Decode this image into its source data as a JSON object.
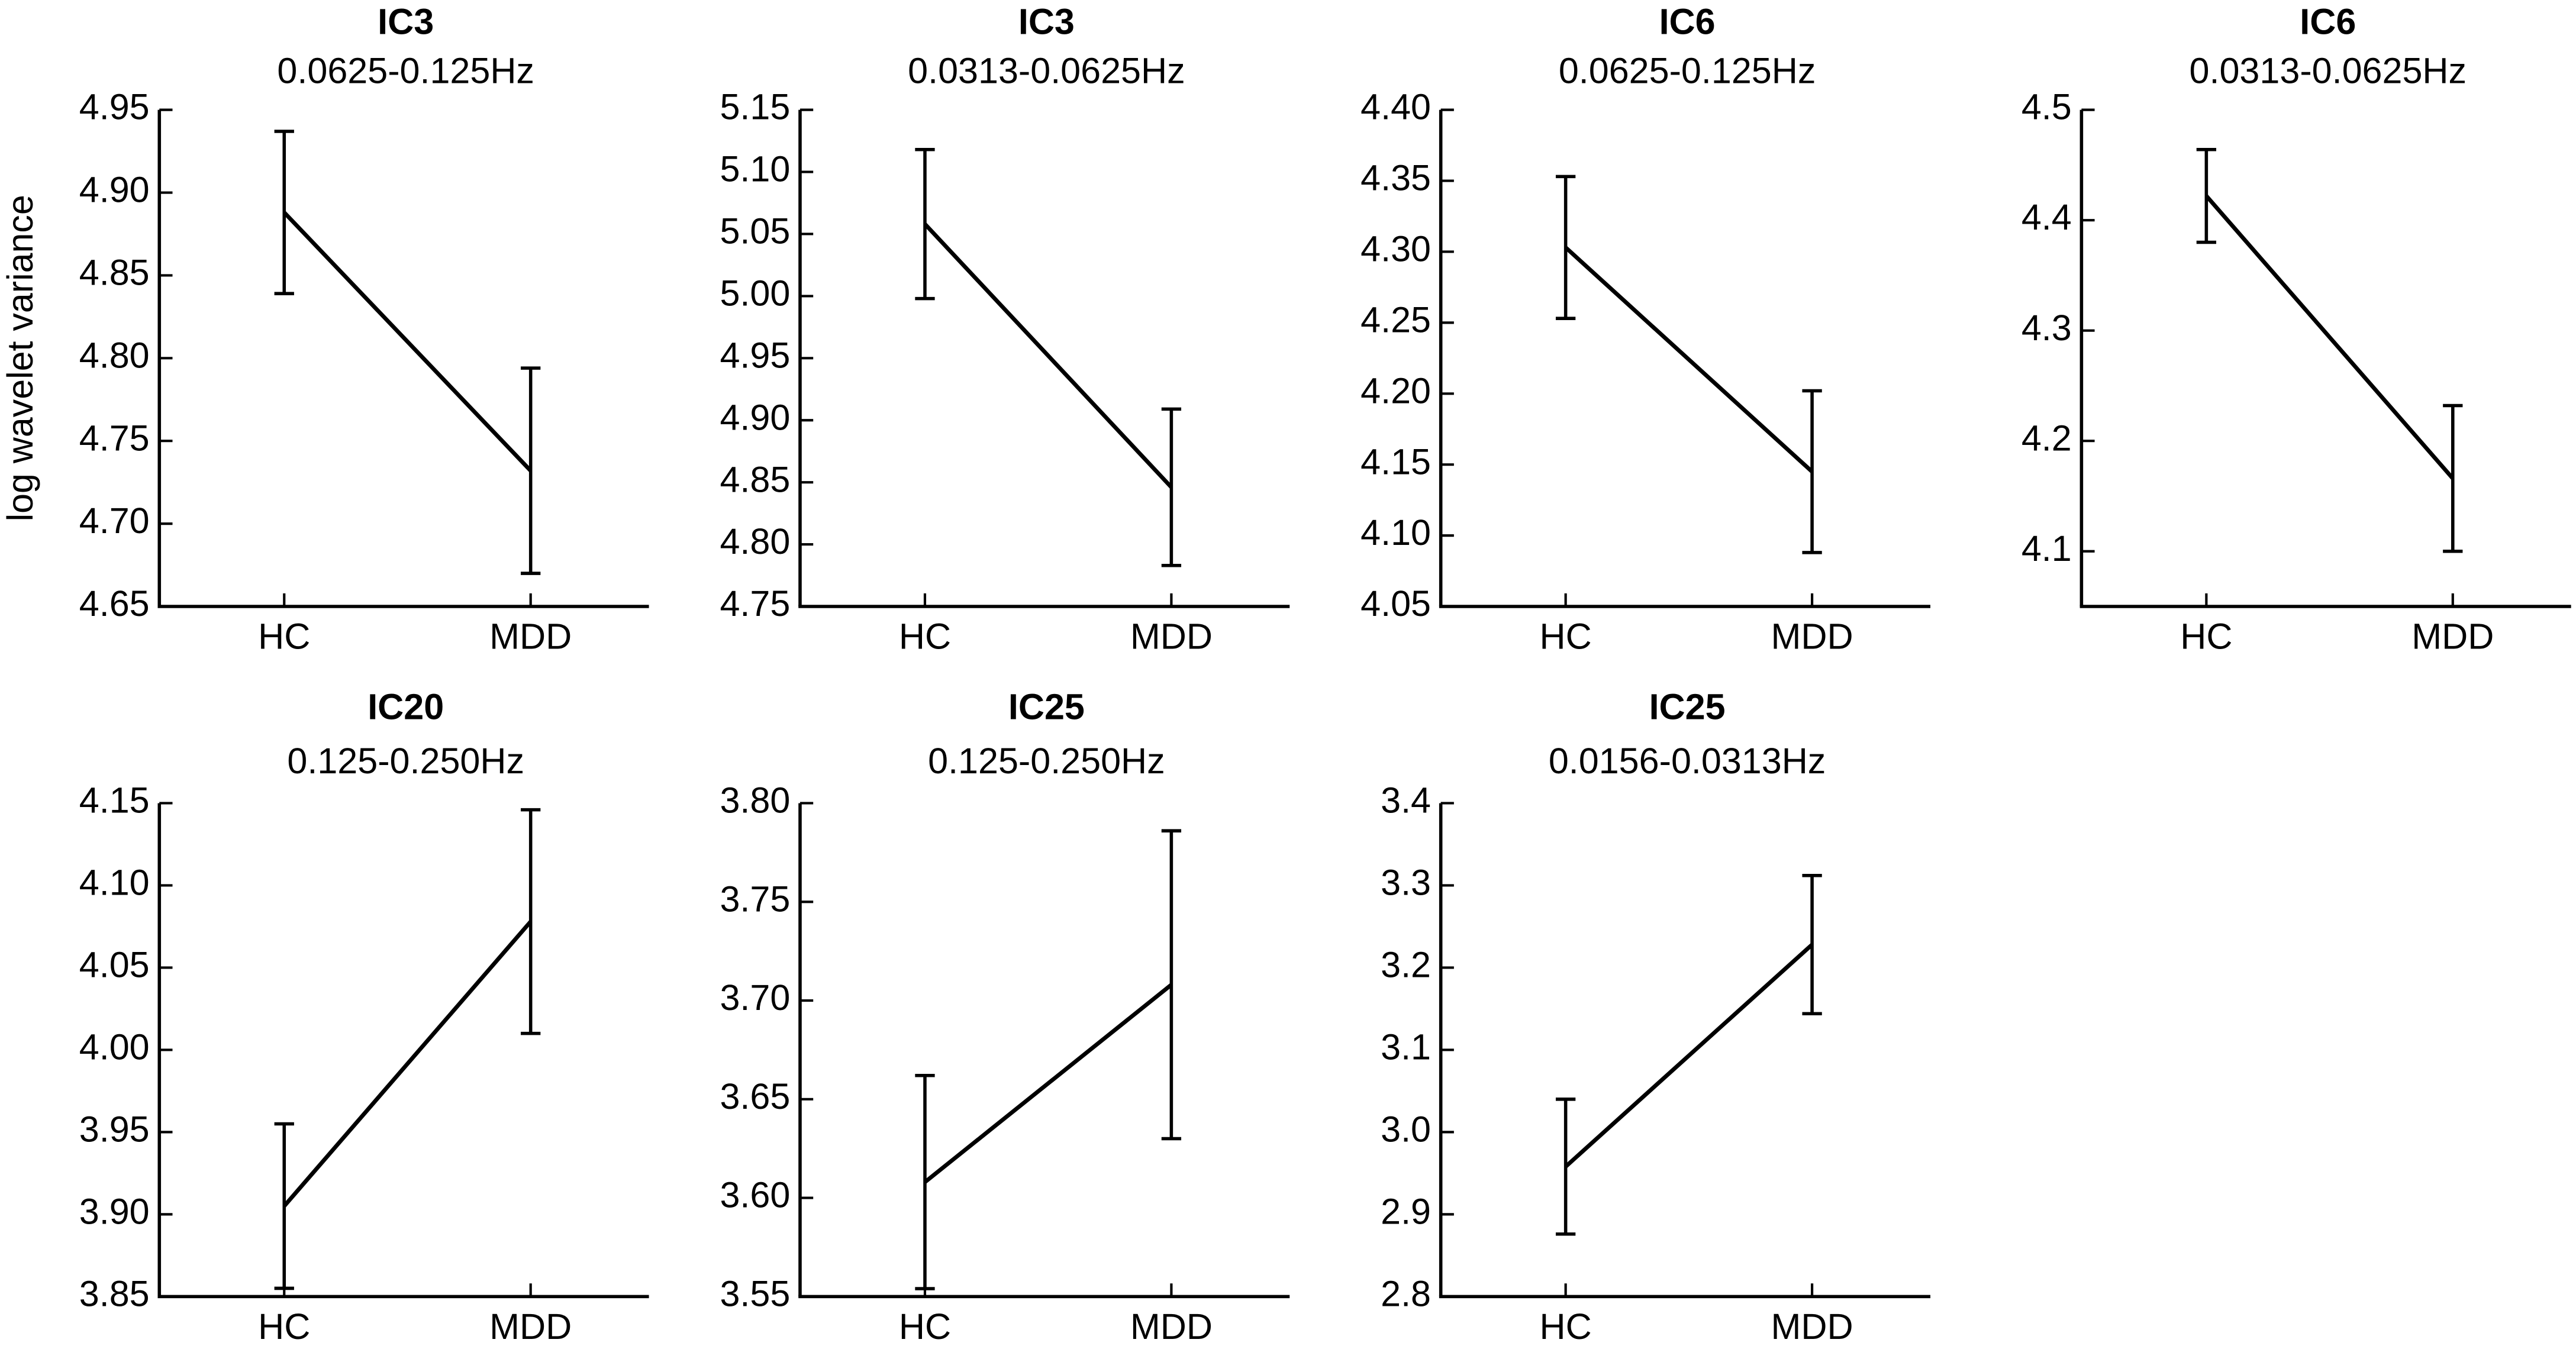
{
  "chart_data": [
    {
      "type": "line",
      "title": "IC3",
      "subtitle": "0.0625-0.125Hz",
      "y_label": "log wavelet variance",
      "categories": [
        "HC",
        "MDD"
      ],
      "values": [
        4.888,
        4.732
      ],
      "errors": [
        0.049,
        0.062
      ],
      "color": "#000000",
      "ylim": [
        4.65,
        4.95
      ],
      "yticks": [
        4.65,
        {
          "value": 4.7,
          "label": "4.70"
        },
        4.75,
        {
          "value": 4.8,
          "label": "4.80"
        },
        4.85,
        {
          "value": 4.9,
          "label": "4.90"
        },
        4.95
      ]
    },
    {
      "type": "line",
      "title": "IC3",
      "subtitle": "0.0313-0.0625Hz",
      "categories": [
        "HC",
        "MDD"
      ],
      "values": [
        5.058,
        4.846
      ],
      "errors": [
        0.06,
        0.063
      ],
      "color": "#000000",
      "ylim": [
        4.75,
        5.15
      ],
      "yticks": [
        4.75,
        {
          "value": 4.8,
          "label": "4.80"
        },
        4.85,
        {
          "value": 4.9,
          "label": "4.90"
        },
        4.95,
        {
          "value": 5.0,
          "label": "5.00"
        },
        5.05,
        {
          "value": 5.1,
          "label": "5.10"
        },
        5.15
      ]
    },
    {
      "type": "line",
      "title": "IC6",
      "subtitle": "0.0625-0.125Hz",
      "categories": [
        "HC",
        "MDD"
      ],
      "values": [
        4.303,
        4.145
      ],
      "errors": [
        0.05,
        0.057
      ],
      "color": "#000000",
      "ylim": [
        4.05,
        4.4
      ],
      "yticks": [
        4.05,
        {
          "value": 4.1,
          "label": "4.10"
        },
        4.15,
        {
          "value": 4.2,
          "label": "4.20"
        },
        4.25,
        {
          "value": 4.3,
          "label": "4.30"
        },
        4.35,
        {
          "value": 4.4,
          "label": "4.40"
        }
      ]
    },
    {
      "type": "line",
      "title": "IC6",
      "subtitle": "0.0313-0.0625Hz",
      "categories": [
        "HC",
        "MDD"
      ],
      "values": [
        4.422,
        4.166
      ],
      "errors": [
        0.042,
        0.066
      ],
      "color": "#000000",
      "ylim": [
        4.05,
        4.5
      ],
      "yticks": [
        4.1,
        4.2,
        4.3,
        4.4,
        4.5
      ]
    },
    {
      "type": "line",
      "title": "IC20",
      "subtitle": "0.125-0.250Hz",
      "categories": [
        "HC",
        "MDD"
      ],
      "values": [
        3.905,
        4.078
      ],
      "errors": [
        0.05,
        0.068
      ],
      "color": "#000000",
      "ylim": [
        3.85,
        4.15
      ],
      "yticks": [
        3.85,
        {
          "value": 3.9,
          "label": "3.90"
        },
        3.95,
        {
          "value": 4.0,
          "label": "4.00"
        },
        4.05,
        {
          "value": 4.1,
          "label": "4.10"
        },
        4.15
      ]
    },
    {
      "type": "line",
      "title": "IC25",
      "subtitle": "0.125-0.250Hz",
      "categories": [
        "HC",
        "MDD"
      ],
      "values": [
        3.608,
        3.708
      ],
      "errors": [
        0.054,
        0.078
      ],
      "color": "#000000",
      "ylim": [
        3.55,
        3.8
      ],
      "yticks": [
        3.55,
        {
          "value": 3.6,
          "label": "3.60"
        },
        3.65,
        {
          "value": 3.7,
          "label": "3.70"
        },
        3.75,
        {
          "value": 3.8,
          "label": "3.80"
        }
      ]
    },
    {
      "type": "line",
      "title": "IC25",
      "subtitle": "0.0156-0.0313Hz",
      "categories": [
        "HC",
        "MDD"
      ],
      "values": [
        2.958,
        3.228
      ],
      "errors": [
        0.082,
        0.084
      ],
      "color": "#000000",
      "ylim": [
        2.8,
        3.4
      ],
      "yticks": [
        2.8,
        2.9,
        {
          "value": 3.0,
          "label": "3.0"
        },
        3.1,
        3.2,
        3.3,
        3.4
      ]
    }
  ]
}
